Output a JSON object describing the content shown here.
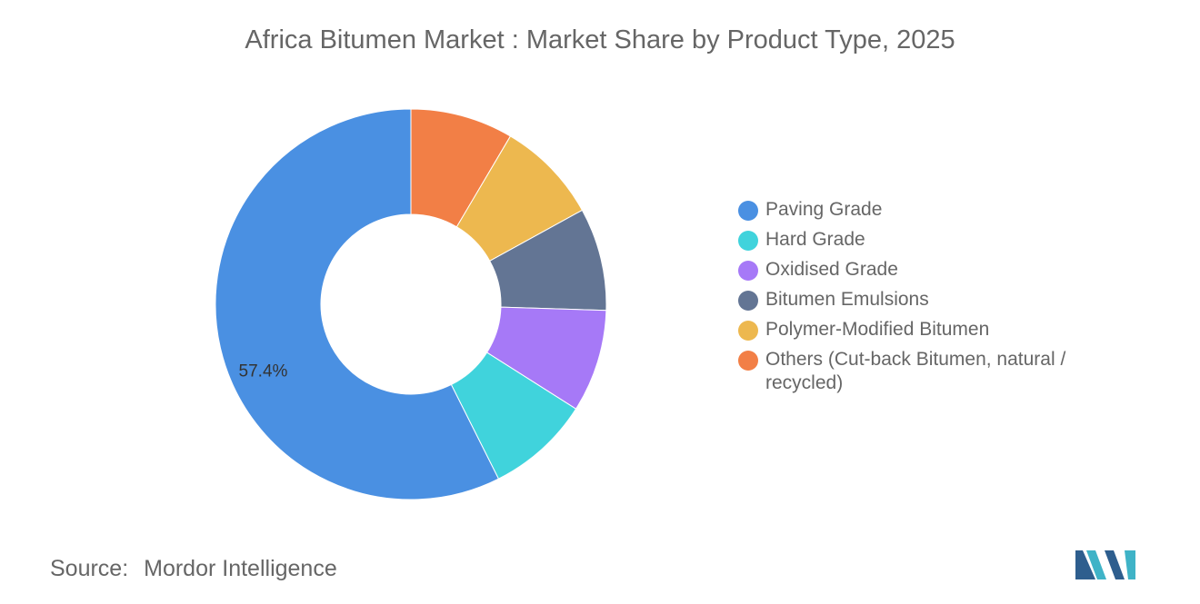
{
  "title": "Africa Bitumen Market : Market Share by Product Type, 2025",
  "source": {
    "label": "Source:",
    "value": "Mordor Intelligence"
  },
  "chart_data": {
    "type": "pie",
    "donut": true,
    "title": "Africa Bitumen Market : Market Share by Product Type, 2025",
    "legend_position": "right",
    "categories": [
      "Paving Grade",
      "Hard Grade",
      "Oxidised Grade",
      "Bitumen Emulsions",
      "Polymer-Modified Bitumen",
      "Others (Cut-back Bitumen, natural / recycled)"
    ],
    "values": [
      57.4,
      8.6,
      8.5,
      8.5,
      8.5,
      8.5
    ],
    "colors": [
      "#4A90E2",
      "#40D3DC",
      "#A679F7",
      "#637594",
      "#EDB84F",
      "#F27F46"
    ],
    "data_labels": [
      "57.4%",
      "",
      "",
      "",
      "",
      ""
    ]
  }
}
